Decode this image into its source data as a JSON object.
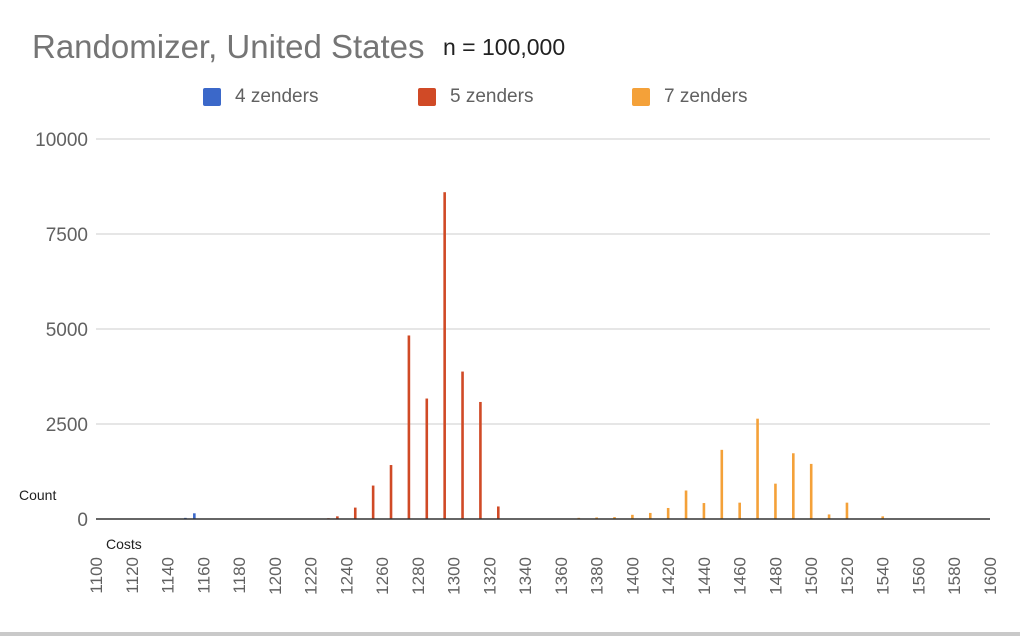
{
  "page": {
    "title": "Randomizer, United States",
    "subtitle": "n = 100,000"
  },
  "labels": {
    "count": "Count",
    "costs": "Costs"
  },
  "legend": [
    {
      "name": "4 zenders",
      "color": "#3b68c9"
    },
    {
      "name": "5 zenders",
      "color": "#d04a26"
    },
    {
      "name": "7 zenders",
      "color": "#f4a139"
    }
  ],
  "chart_data": {
    "type": "bar",
    "title": "Randomizer, United States",
    "subtitle": "n = 100,000",
    "xlabel": "Costs",
    "ylabel": "Count",
    "xlim": [
      1100,
      1600
    ],
    "ylim": [
      0,
      10000
    ],
    "x_ticks": [
      1100,
      1120,
      1140,
      1160,
      1180,
      1200,
      1220,
      1240,
      1260,
      1280,
      1300,
      1320,
      1340,
      1360,
      1380,
      1400,
      1420,
      1440,
      1460,
      1480,
      1500,
      1520,
      1540,
      1560,
      1580,
      1600
    ],
    "y_ticks": [
      0,
      2500,
      5000,
      7500,
      10000
    ],
    "grid": true,
    "legend_position": "top",
    "series": [
      {
        "name": "4 zenders",
        "color": "#3b68c9",
        "points": [
          [
            1150,
            30
          ],
          [
            1155,
            150
          ]
        ]
      },
      {
        "name": "5 zenders",
        "color": "#d04a26",
        "points": [
          [
            1230,
            20
          ],
          [
            1235,
            70
          ],
          [
            1245,
            300
          ],
          [
            1255,
            880
          ],
          [
            1265,
            1420
          ],
          [
            1275,
            4830
          ],
          [
            1285,
            3170
          ],
          [
            1295,
            8600
          ],
          [
            1305,
            3880
          ],
          [
            1315,
            3080
          ],
          [
            1325,
            330
          ]
        ]
      },
      {
        "name": "7 zenders",
        "color": "#f4a139",
        "points": [
          [
            1370,
            30
          ],
          [
            1380,
            40
          ],
          [
            1390,
            50
          ],
          [
            1400,
            110
          ],
          [
            1410,
            160
          ],
          [
            1420,
            290
          ],
          [
            1430,
            750
          ],
          [
            1440,
            420
          ],
          [
            1450,
            1820
          ],
          [
            1460,
            430
          ],
          [
            1470,
            2640
          ],
          [
            1480,
            930
          ],
          [
            1490,
            1730
          ],
          [
            1500,
            1450
          ],
          [
            1510,
            120
          ],
          [
            1520,
            430
          ],
          [
            1540,
            70
          ]
        ]
      }
    ]
  }
}
